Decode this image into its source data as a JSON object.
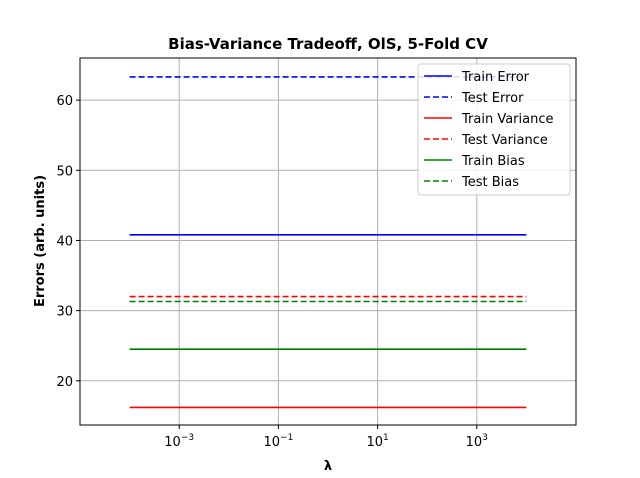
{
  "chart_data": {
    "type": "line",
    "title": "Bias-Variance Tradeoff, OlS, 5-Fold CV",
    "xlabel": "λ",
    "ylabel": "Errors (arb. units)",
    "xscale": "log",
    "xlim": [
      1e-05,
      100000
    ],
    "ylim": [
      13.7,
      66.0
    ],
    "grid": true,
    "legend_position": "top-right",
    "x_ticks": [
      {
        "value": 0.001,
        "base": "10",
        "exp": "−3"
      },
      {
        "value": 0.1,
        "base": "10",
        "exp": "−1"
      },
      {
        "value": 10,
        "base": "10",
        "exp": "1"
      },
      {
        "value": 1000,
        "base": "10",
        "exp": "3"
      }
    ],
    "y_ticks": [
      20,
      30,
      40,
      50,
      60
    ],
    "x": [
      0.0001,
      10000
    ],
    "series": [
      {
        "name": "Train Error",
        "values": [
          40.8,
          40.8
        ],
        "color": "#0000ff",
        "dash": "solid"
      },
      {
        "name": "Test Error",
        "values": [
          63.3,
          63.3
        ],
        "color": "#0000ff",
        "dash": "dashed"
      },
      {
        "name": "Train Variance",
        "values": [
          16.2,
          16.2
        ],
        "color": "#ff0000",
        "dash": "solid"
      },
      {
        "name": "Test Variance",
        "values": [
          32.0,
          32.0
        ],
        "color": "#ff0000",
        "dash": "dashed"
      },
      {
        "name": "Train Bias",
        "values": [
          24.5,
          24.5
        ],
        "color": "#008000",
        "dash": "solid"
      },
      {
        "name": "Test Bias",
        "values": [
          31.3,
          31.3
        ],
        "color": "#008000",
        "dash": "dashed"
      }
    ]
  }
}
